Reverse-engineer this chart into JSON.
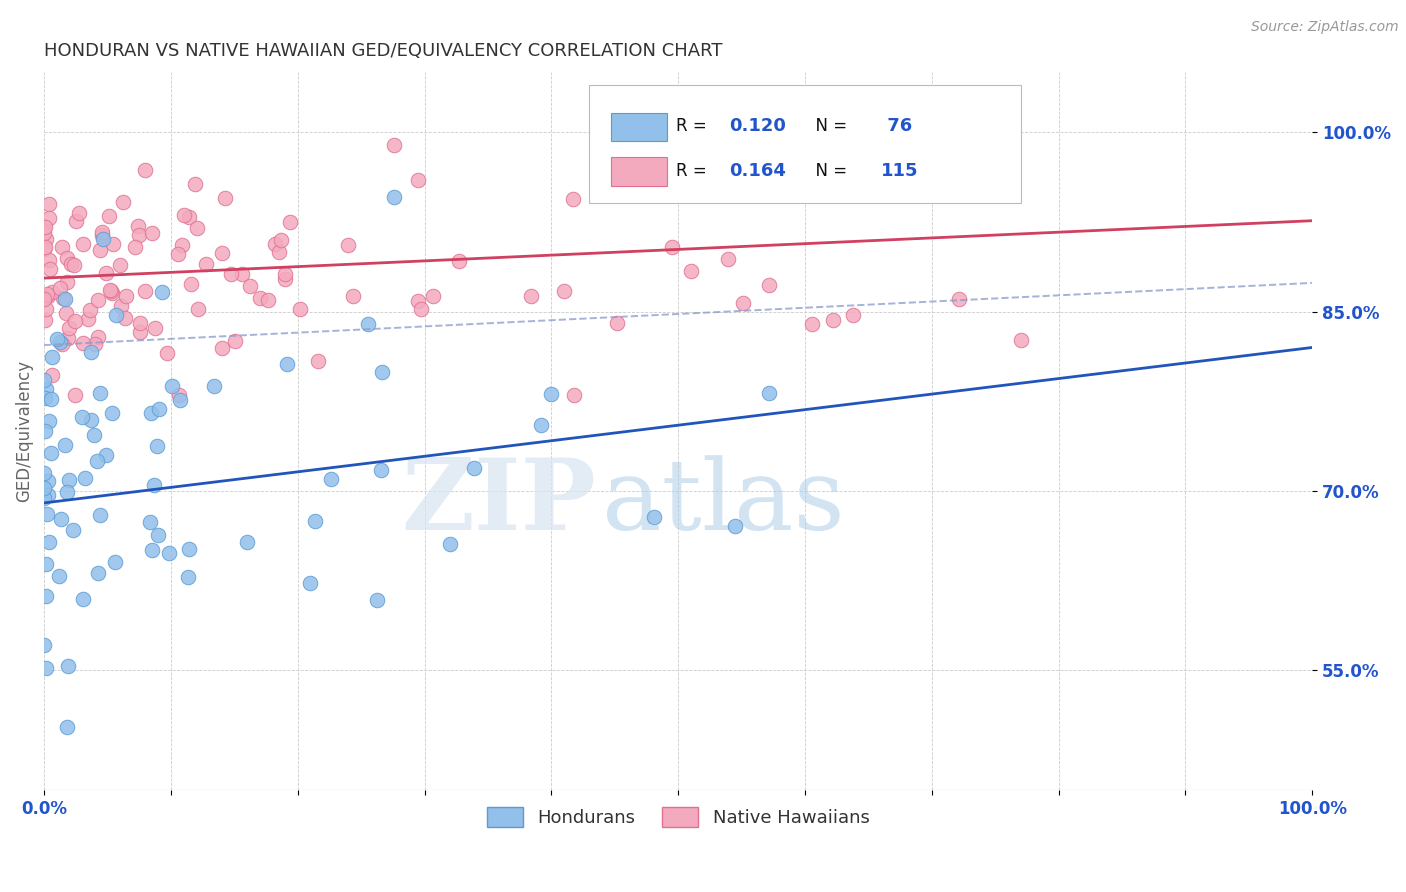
{
  "title": "HONDURAN VS NATIVE HAWAIIAN GED/EQUIVALENCY CORRELATION CHART",
  "source": "Source: ZipAtlas.com",
  "ylabel": "GED/Equivalency",
  "xlabel": "",
  "xlim": [
    0.0,
    1.0
  ],
  "ylim": [
    0.45,
    1.05
  ],
  "yticks": [
    0.55,
    0.7,
    0.85,
    1.0
  ],
  "ytick_labels": [
    "55.0%",
    "70.0%",
    "85.0%",
    "100.0%"
  ],
  "xtick_labels": [
    "0.0%",
    "",
    "",
    "",
    "",
    "",
    "",
    "",
    "",
    "",
    "100.0%"
  ],
  "honduran_color": "#92C0EA",
  "hawaiian_color": "#F4AABE",
  "honduran_edge": "#5B9BD5",
  "hawaiian_edge": "#E07090",
  "trendline_honduran_color": "#2255BB",
  "trendline_hawaiian_color": "#D04060",
  "dashed_line_color": "#8899CC",
  "R_honduran": 0.12,
  "N_honduran": 76,
  "R_hawaiian": 0.164,
  "N_hawaiian": 115,
  "watermark_zip": "ZIP",
  "watermark_atlas": "atlas",
  "background_color": "#ffffff",
  "grid_color": "#cccccc",
  "title_color": "#333333",
  "axis_label_color": "#666666",
  "tick_label_color": "#2255CC",
  "legend_R_color": "#111111",
  "legend_N_color": "#2255CC"
}
